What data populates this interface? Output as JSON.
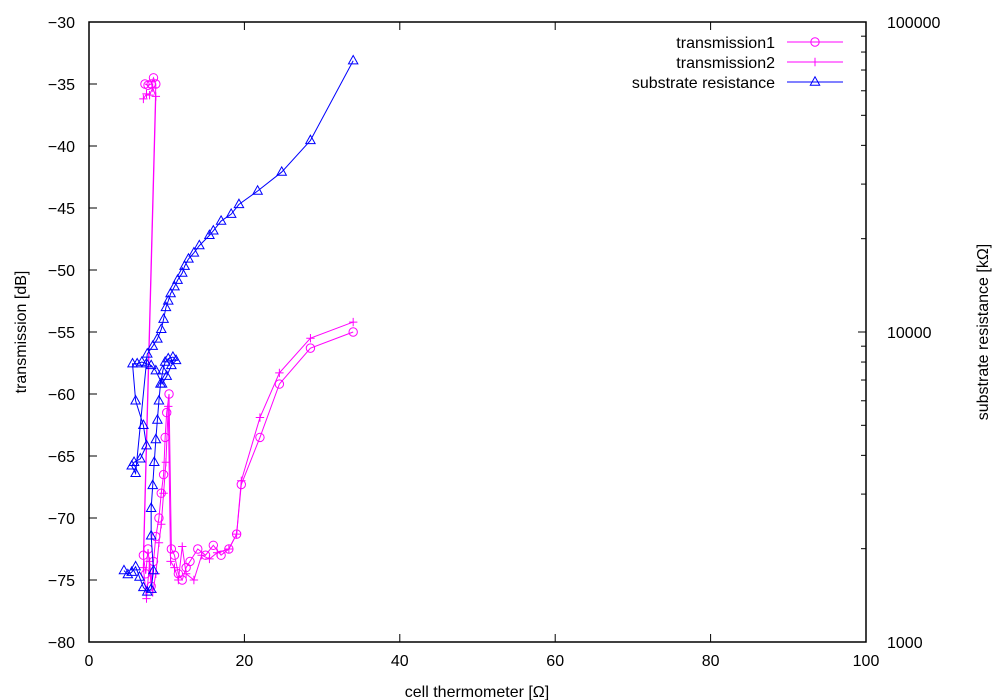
{
  "chart_data": {
    "type": "line",
    "xlabel": "cell thermometer [Ω]",
    "ylabel": "transmission [dB]",
    "y2label": "substrate resistance [kΩ]",
    "xlim": [
      0,
      100
    ],
    "ylim": [
      -80,
      -30
    ],
    "y2lim": [
      1000,
      100000
    ],
    "y2scale": "log",
    "grid": false,
    "legend_position": "top-right",
    "x_ticks": [
      "0",
      "20",
      "40",
      "60",
      "80",
      "100"
    ],
    "y_ticks": [
      "-80",
      "-75",
      "-70",
      "-65",
      "-60",
      "-55",
      "-50",
      "-45",
      "-40",
      "-35",
      "-30"
    ],
    "y2_ticks": [
      "1000",
      "10000",
      "100000"
    ],
    "series": [
      {
        "name": "transmission1",
        "axis": "left",
        "marker": "circle",
        "color": "#ff00ff",
        "points": [
          [
            7.2,
            -35.0
          ],
          [
            7.6,
            -35.1
          ],
          [
            8.0,
            -35.0
          ],
          [
            8.3,
            -34.5
          ],
          [
            8.6,
            -35.0
          ],
          [
            7.0,
            -73.0
          ],
          [
            7.3,
            -74.5
          ],
          [
            7.6,
            -72.5
          ],
          [
            8.0,
            -75.5
          ],
          [
            8.3,
            -73.5
          ],
          [
            8.6,
            -71.5
          ],
          [
            9.0,
            -70.0
          ],
          [
            9.3,
            -68.0
          ],
          [
            9.6,
            -66.5
          ],
          [
            9.8,
            -63.5
          ],
          [
            10.0,
            -61.5
          ],
          [
            10.3,
            -60.0
          ],
          [
            10.6,
            -72.5
          ],
          [
            11.0,
            -73.0
          ],
          [
            11.5,
            -74.5
          ],
          [
            12.0,
            -75.0
          ],
          [
            12.5,
            -74.0
          ],
          [
            13.0,
            -73.5
          ],
          [
            14.0,
            -72.5
          ],
          [
            15.0,
            -73.0
          ],
          [
            16.0,
            -72.2
          ],
          [
            17.0,
            -73.0
          ],
          [
            18.0,
            -72.5
          ],
          [
            19.0,
            -71.3
          ],
          [
            19.6,
            -67.3
          ],
          [
            22.0,
            -63.5
          ],
          [
            24.5,
            -59.2
          ],
          [
            28.5,
            -56.3
          ],
          [
            34.0,
            -55.0
          ]
        ]
      },
      {
        "name": "transmission2",
        "axis": "left",
        "marker": "plus",
        "color": "#ff00ff",
        "points": [
          [
            7.0,
            -36.2
          ],
          [
            7.4,
            -35.8
          ],
          [
            7.8,
            -35.9
          ],
          [
            8.2,
            -35.3
          ],
          [
            8.6,
            -36.0
          ],
          [
            7.0,
            -74.0
          ],
          [
            7.4,
            -76.5
          ],
          [
            7.8,
            -73.5
          ],
          [
            8.2,
            -76.0
          ],
          [
            8.6,
            -74.5
          ],
          [
            9.0,
            -72.0
          ],
          [
            9.3,
            -70.5
          ],
          [
            9.6,
            -68.0
          ],
          [
            9.9,
            -65.5
          ],
          [
            10.2,
            -61.0
          ],
          [
            10.5,
            -73.5
          ],
          [
            11.0,
            -74.0
          ],
          [
            11.5,
            -75.0
          ],
          [
            12.0,
            -72.3
          ],
          [
            12.5,
            -74.5
          ],
          [
            13.5,
            -75.0
          ],
          [
            14.5,
            -73.0
          ],
          [
            15.5,
            -73.3
          ],
          [
            16.5,
            -72.8
          ],
          [
            18.0,
            -72.5
          ],
          [
            19.0,
            -71.3
          ],
          [
            19.6,
            -67.0
          ],
          [
            22.0,
            -61.9
          ],
          [
            24.5,
            -58.3
          ],
          [
            28.5,
            -55.5
          ],
          [
            34.0,
            -54.2
          ]
        ]
      },
      {
        "name": "substrate resistance",
        "axis": "right",
        "marker": "triangle",
        "color": "#0000ff",
        "points": [
          [
            4.5,
            1700
          ],
          [
            5.0,
            1650
          ],
          [
            5.5,
            1680
          ],
          [
            6.0,
            1750
          ],
          [
            6.5,
            1620
          ],
          [
            7.0,
            1500
          ],
          [
            7.5,
            1450
          ],
          [
            8.0,
            1480
          ],
          [
            8.3,
            1700
          ],
          [
            8.0,
            2200
          ],
          [
            8.0,
            2700
          ],
          [
            8.2,
            3200
          ],
          [
            8.4,
            3800
          ],
          [
            8.6,
            4500
          ],
          [
            8.8,
            5200
          ],
          [
            9.0,
            6000
          ],
          [
            9.2,
            6800
          ],
          [
            9.5,
            7500
          ],
          [
            9.8,
            8000
          ],
          [
            10.2,
            8200
          ],
          [
            10.8,
            8300
          ],
          [
            11.2,
            8100
          ],
          [
            10.6,
            7800
          ],
          [
            10.0,
            7200
          ],
          [
            9.4,
            6800
          ],
          [
            8.6,
            7500
          ],
          [
            8.0,
            7800
          ],
          [
            7.4,
            7900
          ],
          [
            6.8,
            8000
          ],
          [
            6.2,
            7900
          ],
          [
            5.6,
            7900
          ],
          [
            6.0,
            6000
          ],
          [
            7.0,
            5000
          ],
          [
            7.4,
            4300
          ],
          [
            6.6,
            3900
          ],
          [
            5.8,
            3800
          ],
          [
            5.5,
            3700
          ],
          [
            6.0,
            3500
          ],
          [
            7.5,
            8500
          ],
          [
            8.2,
            9000
          ],
          [
            8.8,
            9500
          ],
          [
            9.3,
            10200
          ],
          [
            9.6,
            11000
          ],
          [
            9.9,
            12000
          ],
          [
            10.2,
            12600
          ],
          [
            10.5,
            13300
          ],
          [
            11.0,
            14000
          ],
          [
            11.4,
            14700
          ],
          [
            12.0,
            15500
          ],
          [
            12.3,
            16300
          ],
          [
            12.8,
            17200
          ],
          [
            13.5,
            18000
          ],
          [
            14.2,
            19000
          ],
          [
            15.5,
            20500
          ],
          [
            16.0,
            21200
          ],
          [
            17.0,
            22800
          ],
          [
            18.3,
            24000
          ],
          [
            19.3,
            25800
          ],
          [
            21.7,
            28500
          ],
          [
            24.8,
            32800
          ],
          [
            28.5,
            41500
          ],
          [
            34.0,
            75000
          ]
        ]
      }
    ]
  }
}
